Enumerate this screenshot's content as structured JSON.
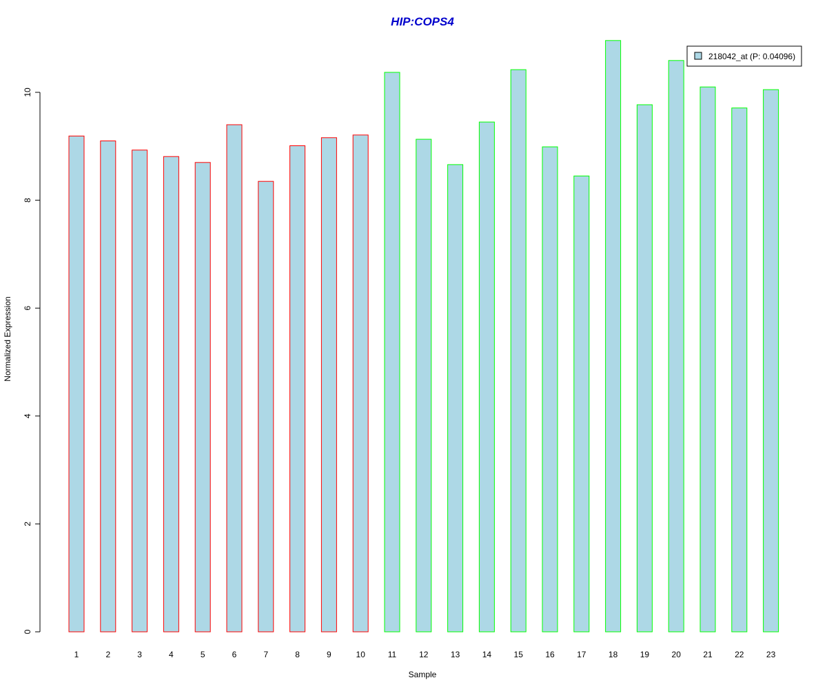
{
  "chart_data": {
    "type": "bar",
    "title": "HIP:COPS4",
    "xlabel": "Sample",
    "ylabel": "Normalized Expression",
    "categories": [
      "1",
      "2",
      "3",
      "4",
      "5",
      "6",
      "7",
      "8",
      "9",
      "10",
      "11",
      "12",
      "13",
      "14",
      "15",
      "16",
      "17",
      "18",
      "19",
      "20",
      "21",
      "22",
      "23"
    ],
    "series": [
      {
        "name": "218042_at (P: 0.04096)",
        "values": [
          9.19,
          9.1,
          8.93,
          8.81,
          8.7,
          9.4,
          8.35,
          9.01,
          9.16,
          9.21,
          10.37,
          9.13,
          8.66,
          9.45,
          10.42,
          8.99,
          8.45,
          10.96,
          9.77,
          10.59,
          10.1,
          9.71,
          10.05
        ],
        "fill_color": "#add8e6",
        "outline_colors": [
          "#ff0000",
          "#ff0000",
          "#ff0000",
          "#ff0000",
          "#ff0000",
          "#ff0000",
          "#ff0000",
          "#ff0000",
          "#ff0000",
          "#ff0000",
          "#00ff00",
          "#00ff00",
          "#00ff00",
          "#00ff00",
          "#00ff00",
          "#00ff00",
          "#00ff00",
          "#00ff00",
          "#00ff00",
          "#00ff00",
          "#00ff00",
          "#00ff00",
          "#00ff00"
        ]
      }
    ],
    "yticks": [
      "0",
      "2",
      "4",
      "6",
      "8",
      "10"
    ],
    "ylim": [
      0,
      11
    ],
    "grid": false,
    "legend_position": "top-right",
    "title_color": "#0000cc"
  }
}
